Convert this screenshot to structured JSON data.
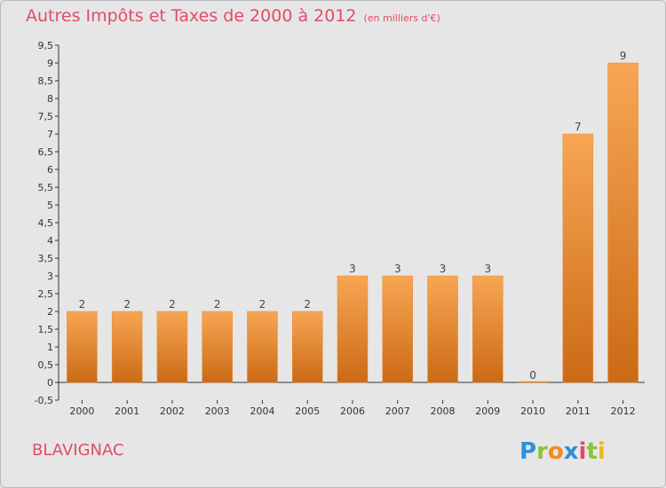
{
  "chart_data": {
    "type": "bar",
    "title": "Autres Impôts et Taxes de 2000 à 2012",
    "unit": "(en milliers d'€)",
    "categories": [
      "2000",
      "2001",
      "2002",
      "2003",
      "2004",
      "2005",
      "2006",
      "2007",
      "2008",
      "2009",
      "2010",
      "2011",
      "2012"
    ],
    "values": [
      2,
      2,
      2,
      2,
      2,
      2,
      3,
      3,
      3,
      3,
      0,
      7,
      9
    ],
    "ylim": [
      -0.5,
      9.5
    ],
    "yticks": [
      "-0,5",
      "0",
      "0,5",
      "1",
      "1,5",
      "2",
      "2,5",
      "3",
      "3,5",
      "4",
      "4,5",
      "5",
      "5,5",
      "6",
      "6,5",
      "7",
      "7,5",
      "8",
      "8,5",
      "9",
      "9,5"
    ],
    "grid": false,
    "bar_colors": {
      "top": "#f7a654",
      "bottom": "#cc6a15",
      "edge": "#e88a33"
    }
  },
  "footer": {
    "commune": "BLAVIGNAC",
    "logo_text": "Proxiti"
  }
}
